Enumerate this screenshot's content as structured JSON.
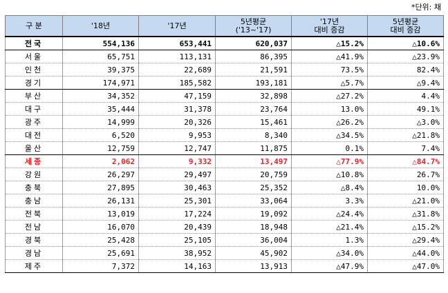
{
  "unit_note": "*단위: 채",
  "headers": [
    "구  분",
    "'18년",
    "'17년",
    "5년평균\n('13~'17)",
    "'17년\n대비 증감",
    "5년평균\n대비 증감"
  ],
  "rows": [
    {
      "region": "전국",
      "y18": "554,136",
      "y17": "653,441",
      "avg5": "620,037",
      "vs17": "△15.2%",
      "vsavg": "△10.6%"
    },
    {
      "region": "서울",
      "y18": "65,751",
      "y17": "113,131",
      "avg5": "86,395",
      "vs17": "△41.9%",
      "vsavg": "△23.9%"
    },
    {
      "region": "인천",
      "y18": "39,375",
      "y17": "22,689",
      "avg5": "21,591",
      "vs17": "73.5%",
      "vsavg": "82.4%"
    },
    {
      "region": "경기",
      "y18": "174,971",
      "y17": "185,582",
      "avg5": "193,181",
      "vs17": "△5.7%",
      "vsavg": "△9.4%"
    },
    {
      "region": "부산",
      "y18": "34,352",
      "y17": "47,159",
      "avg5": "32,898",
      "vs17": "△27.2%",
      "vsavg": "4.4%"
    },
    {
      "region": "대구",
      "y18": "35,444",
      "y17": "31,378",
      "avg5": "23,764",
      "vs17": "13.0%",
      "vsavg": "49.1%"
    },
    {
      "region": "광주",
      "y18": "14,999",
      "y17": "20,326",
      "avg5": "15,461",
      "vs17": "△26.2%",
      "vsavg": "△3.0%"
    },
    {
      "region": "대전",
      "y18": "6,520",
      "y17": "9,953",
      "avg5": "8,340",
      "vs17": "△34.5%",
      "vsavg": "△21.8%"
    },
    {
      "region": "울산",
      "y18": "12,759",
      "y17": "12,747",
      "avg5": "11,875",
      "vs17": "0.1%",
      "vsavg": "7.4%"
    },
    {
      "region": "세종",
      "y18": "2,062",
      "y17": "9,332",
      "avg5": "13,497",
      "vs17": "△77.9%",
      "vsavg": "△84.7%"
    },
    {
      "region": "강원",
      "y18": "26,297",
      "y17": "29,497",
      "avg5": "20,759",
      "vs17": "△10.8%",
      "vsavg": "26.7%"
    },
    {
      "region": "충북",
      "y18": "27,895",
      "y17": "30,463",
      "avg5": "25,352",
      "vs17": "△8.4%",
      "vsavg": "10.0%"
    },
    {
      "region": "충남",
      "y18": "26,131",
      "y17": "25,301",
      "avg5": "33,064",
      "vs17": "3.3%",
      "vsavg": "△21.0%"
    },
    {
      "region": "전북",
      "y18": "13,019",
      "y17": "17,224",
      "avg5": "19,092",
      "vs17": "△24.4%",
      "vsavg": "△31.8%"
    },
    {
      "region": "전남",
      "y18": "16,070",
      "y17": "20,439",
      "avg5": "18,948",
      "vs17": "△21.4%",
      "vsavg": "△15.2%"
    },
    {
      "region": "경북",
      "y18": "25,428",
      "y17": "25,105",
      "avg5": "36,004",
      "vs17": "1.3%",
      "vsavg": "△29.4%"
    },
    {
      "region": "경남",
      "y18": "25,691",
      "y17": "38,952",
      "avg5": "45,902",
      "vs17": "△34.0%",
      "vsavg": "△44.0%"
    },
    {
      "region": "제주",
      "y18": "7,372",
      "y17": "14,163",
      "avg5": "13,913",
      "vs17": "△47.9%",
      "vsavg": "△47.0%"
    }
  ],
  "highlight_color": "#e0262b",
  "header_bg": "#c5d9f1"
}
